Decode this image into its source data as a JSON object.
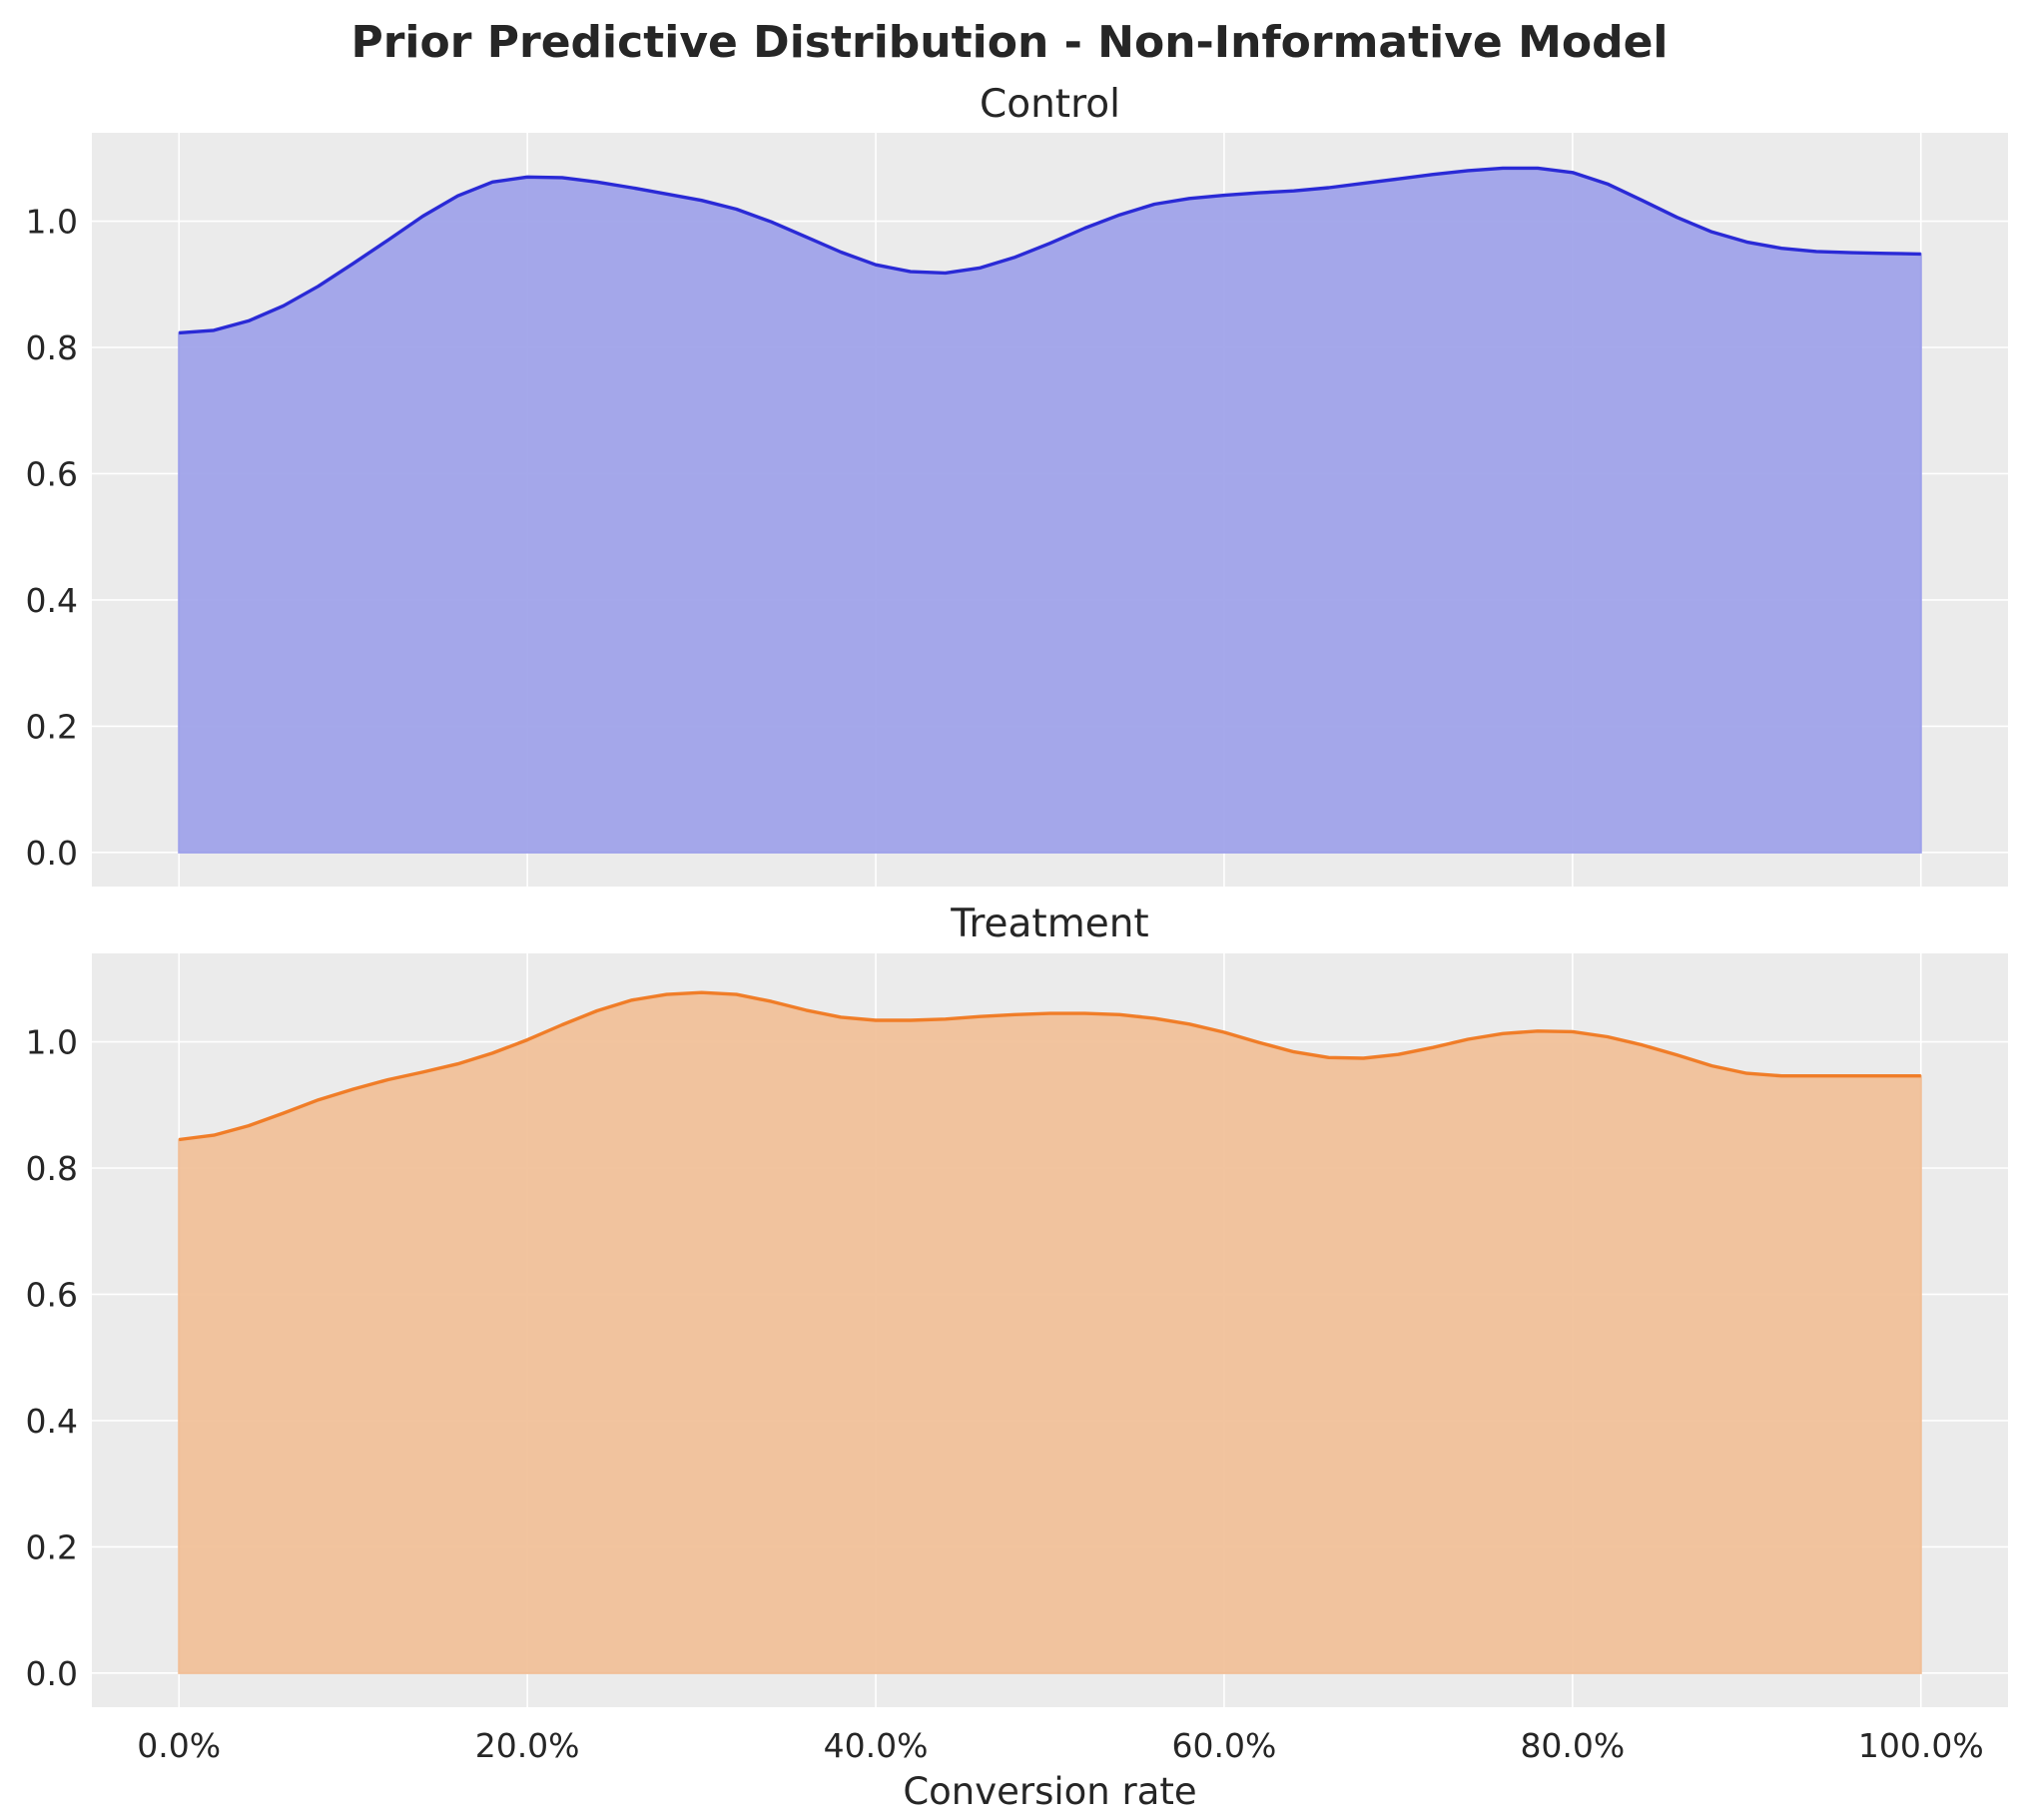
{
  "figure": {
    "title": "Prior Predictive Distribution - Non-Informative Model"
  },
  "chart_data": [
    {
      "type": "area",
      "title": "Control",
      "xlabel": "",
      "ylabel": "",
      "xlim": [
        -0.05,
        1.05
      ],
      "ylim": [
        -0.054,
        1.14
      ],
      "xticks": [
        0.0,
        0.2,
        0.4,
        0.6,
        0.8,
        1.0
      ],
      "xtick_labels": [
        "",
        "",
        "",
        "",
        "",
        ""
      ],
      "yticks": [
        0.0,
        0.2,
        0.4,
        0.6,
        0.8,
        1.0
      ],
      "ytick_labels": [
        "0.0",
        "0.2",
        "0.4",
        "0.6",
        "0.8",
        "1.0"
      ],
      "grid": true,
      "colors": {
        "line": "#2a2ad6",
        "fill": "#9ea1ea"
      },
      "series": [
        {
          "x": [
            0.0,
            0.02,
            0.04,
            0.06,
            0.08,
            0.1,
            0.12,
            0.14,
            0.16,
            0.18,
            0.2,
            0.22,
            0.24,
            0.26,
            0.28,
            0.3,
            0.32,
            0.34,
            0.36,
            0.38,
            0.4,
            0.42,
            0.44,
            0.46,
            0.48,
            0.5,
            0.52,
            0.54,
            0.56,
            0.58,
            0.6,
            0.62,
            0.64,
            0.66,
            0.68,
            0.7,
            0.72,
            0.74,
            0.76,
            0.78,
            0.8,
            0.82,
            0.84,
            0.86,
            0.88,
            0.9,
            0.92,
            0.94,
            0.96,
            0.98,
            1.0
          ],
          "values": [
            0.823,
            0.827,
            0.842,
            0.866,
            0.897,
            0.933,
            0.97,
            1.008,
            1.04,
            1.062,
            1.07,
            1.069,
            1.062,
            1.053,
            1.043,
            1.033,
            1.019,
            0.999,
            0.975,
            0.951,
            0.931,
            0.92,
            0.918,
            0.926,
            0.943,
            0.965,
            0.989,
            1.01,
            1.027,
            1.036,
            1.041,
            1.045,
            1.048,
            1.053,
            1.06,
            1.067,
            1.074,
            1.08,
            1.084,
            1.084,
            1.077,
            1.059,
            1.033,
            1.006,
            0.983,
            0.967,
            0.957,
            0.952,
            0.95,
            0.949,
            0.948
          ]
        }
      ]
    },
    {
      "type": "area",
      "title": "Treatment",
      "xlabel": "Conversion rate",
      "ylabel": "",
      "xlim": [
        -0.05,
        1.05
      ],
      "ylim": [
        -0.054,
        1.14
      ],
      "xticks": [
        0.0,
        0.2,
        0.4,
        0.6,
        0.8,
        1.0
      ],
      "xtick_labels": [
        "0.0%",
        "20.0%",
        "40.0%",
        "60.0%",
        "80.0%",
        "100.0%"
      ],
      "yticks": [
        0.0,
        0.2,
        0.4,
        0.6,
        0.8,
        1.0
      ],
      "ytick_labels": [
        "0.0",
        "0.2",
        "0.4",
        "0.6",
        "0.8",
        "1.0"
      ],
      "grid": true,
      "colors": {
        "line": "#f07d28",
        "fill": "#f1bf98"
      },
      "series": [
        {
          "x": [
            0.0,
            0.02,
            0.04,
            0.06,
            0.08,
            0.1,
            0.12,
            0.14,
            0.16,
            0.18,
            0.2,
            0.22,
            0.24,
            0.26,
            0.28,
            0.3,
            0.32,
            0.34,
            0.36,
            0.38,
            0.4,
            0.42,
            0.44,
            0.46,
            0.48,
            0.5,
            0.52,
            0.54,
            0.56,
            0.58,
            0.6,
            0.62,
            0.64,
            0.66,
            0.68,
            0.7,
            0.72,
            0.74,
            0.76,
            0.78,
            0.8,
            0.82,
            0.84,
            0.86,
            0.88,
            0.9,
            0.92,
            0.94,
            0.96,
            0.98,
            1.0
          ],
          "values": [
            0.845,
            0.852,
            0.867,
            0.887,
            0.908,
            0.925,
            0.94,
            0.952,
            0.965,
            0.982,
            1.003,
            1.027,
            1.049,
            1.066,
            1.075,
            1.078,
            1.075,
            1.064,
            1.05,
            1.039,
            1.034,
            1.034,
            1.036,
            1.04,
            1.043,
            1.045,
            1.045,
            1.043,
            1.037,
            1.028,
            1.015,
            0.999,
            0.984,
            0.975,
            0.974,
            0.98,
            0.991,
            1.004,
            1.013,
            1.017,
            1.016,
            1.008,
            0.995,
            0.979,
            0.962,
            0.95,
            0.946,
            0.946,
            0.946,
            0.946,
            0.946
          ]
        }
      ]
    }
  ]
}
